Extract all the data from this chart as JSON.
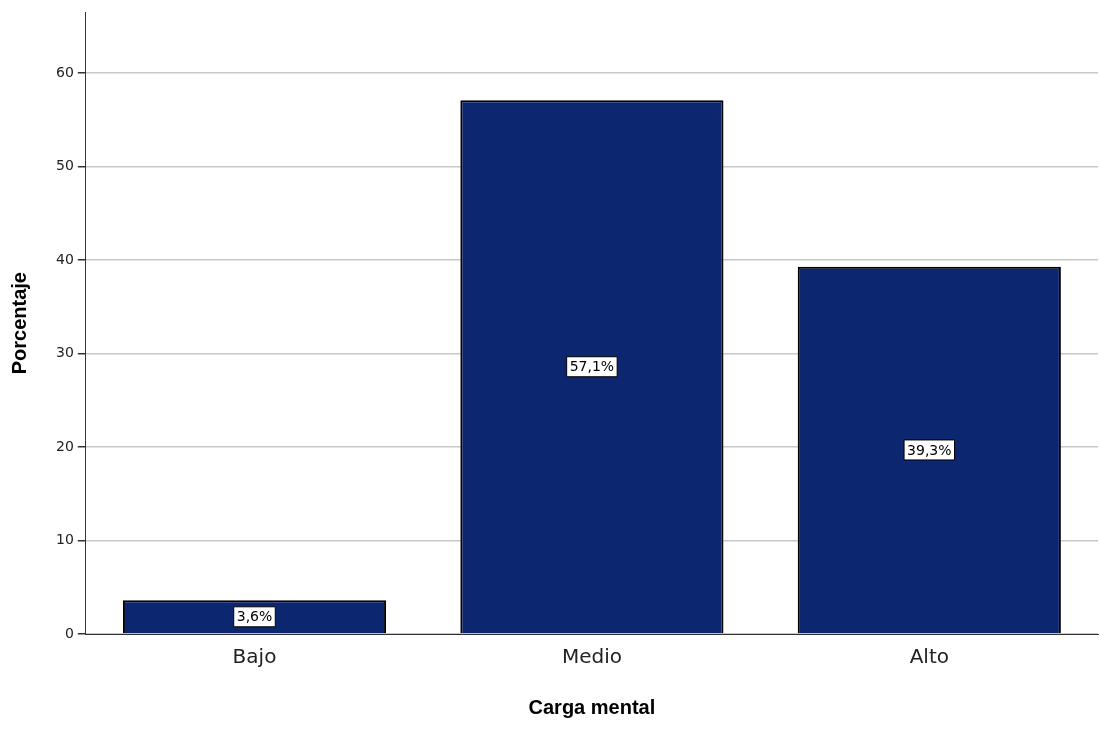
{
  "chart_data": {
    "type": "bar",
    "xlabel": "Carga mental",
    "ylabel": "Porcentaje",
    "categories": [
      "Bajo",
      "Medio",
      "Alto"
    ],
    "values": [
      3.6,
      57.1,
      39.3
    ],
    "value_labels": [
      "3,6%",
      "57,1%",
      "39,3%"
    ],
    "color": "#0c2670",
    "ylim": [
      0,
      66.5
    ],
    "yticks": [
      0,
      10,
      20,
      30,
      40,
      50,
      60
    ],
    "grid": "y",
    "legend": false
  }
}
